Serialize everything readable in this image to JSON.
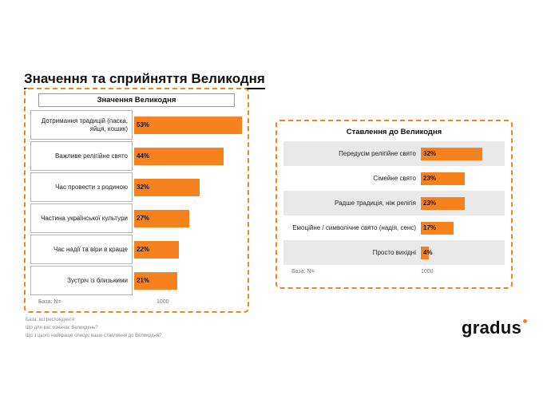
{
  "page": {
    "title": "Значення та сприйняття Великодня"
  },
  "accent_color": "#F5821F",
  "left_panel": {
    "title": "Значення Великодня",
    "rows": [
      {
        "label": "Дотримання традицій (паска, яйця, кошик)",
        "pct": "53%",
        "value": 53
      },
      {
        "label": "Важливе релігійне свято",
        "pct": "44%",
        "value": 44
      },
      {
        "label": "Час провести з родиною",
        "pct": "32%",
        "value": 32
      },
      {
        "label": "Частина української культури",
        "pct": "27%",
        "value": 27
      },
      {
        "label": "Час надії та віри в краще",
        "pct": "22%",
        "value": 22
      },
      {
        "label": "Зустріч із близькими",
        "pct": "21%",
        "value": 21
      }
    ],
    "base_label": "База: N=",
    "base_value": "1000"
  },
  "right_panel": {
    "title": "Ставлення до Великодня",
    "rows": [
      {
        "label": "Передусім релігійне свято",
        "pct": "32%",
        "value": 32
      },
      {
        "label": "Сімейне свято",
        "pct": "23%",
        "value": 23
      },
      {
        "label": "Радше традиція, ніж релігія",
        "pct": "23%",
        "value": 23
      },
      {
        "label": "Емоційне / символічне свято (надія, сенс)",
        "pct": "17%",
        "value": 17
      },
      {
        "label": "Просто вихідні",
        "pct": "4%",
        "value": 4
      }
    ],
    "base_label": "База: N=",
    "base_value": "1000"
  },
  "footnotes": [
    "База: всі респонденти",
    "Що для вас означає Великдень?",
    "Що з цього найкраще описує ваше ставлення до Великодня?"
  ],
  "logo": {
    "text": "gradus"
  },
  "chart_data": [
    {
      "type": "bar",
      "orientation": "horizontal",
      "title": "Значення Великодня",
      "categories": [
        "Дотримання традицій (паска, яйця, кошик)",
        "Важливе релігійне свято",
        "Час провести з родиною",
        "Частина української культури",
        "Час надії та віри в краще",
        "Зустріч із близькими"
      ],
      "values": [
        53,
        44,
        32,
        27,
        22,
        21
      ],
      "unit": "%",
      "xlim": [
        0,
        60
      ],
      "data_labels": [
        "53%",
        "44%",
        "32%",
        "27%",
        "22%",
        "21%"
      ],
      "base": "N= 1000",
      "bar_color": "#F5821F"
    },
    {
      "type": "bar",
      "orientation": "horizontal",
      "title": "Ставлення до Великодня",
      "categories": [
        "Передусім релігійне свято",
        "Сімейне свято",
        "Радше традиція, ніж релігія",
        "Емоційне / символічне свято (надія, сенс)",
        "Просто вихідні"
      ],
      "values": [
        32,
        23,
        23,
        17,
        4
      ],
      "unit": "%",
      "xlim": [
        0,
        40
      ],
      "data_labels": [
        "32%",
        "23%",
        "23%",
        "17%",
        "4%"
      ],
      "base": "N= 1000",
      "bar_color": "#F5821F"
    }
  ]
}
